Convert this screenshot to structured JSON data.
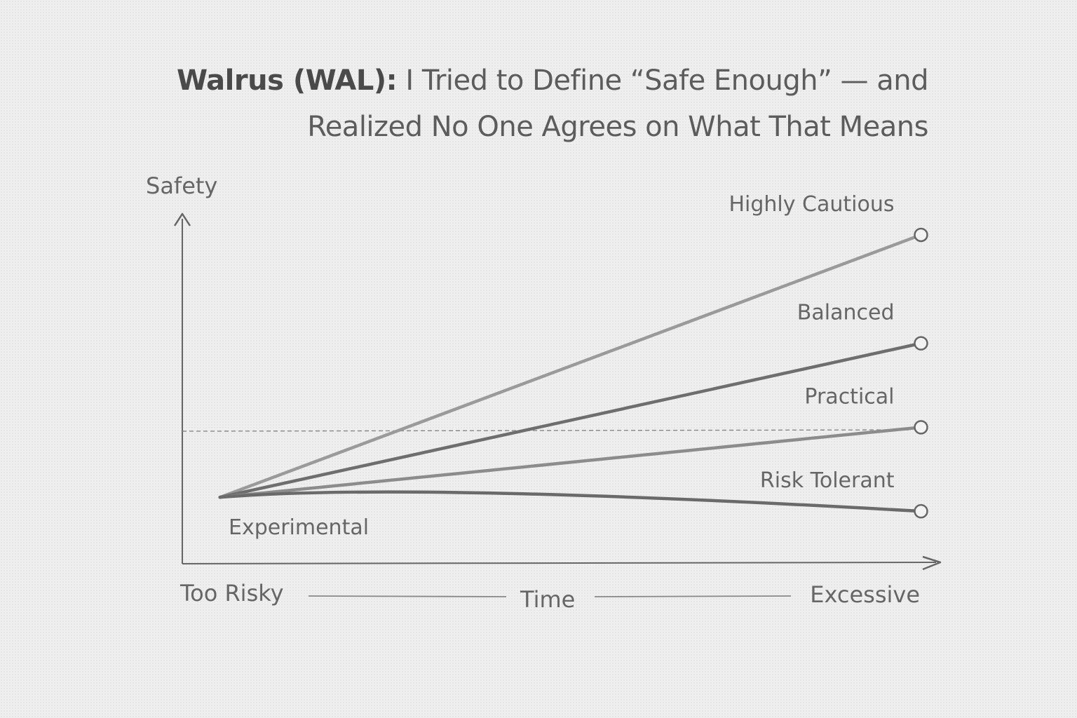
{
  "title": {
    "line1_strong": "Walrus (WAL):",
    "line1_rest": " I Tried to Define “Safe Enough” — and",
    "line2": "Realized No One Agrees on What That Means"
  },
  "chart_data": {
    "type": "line",
    "ylabel": "Safety",
    "xlabel": "Time",
    "x_start_label": "Too Risky",
    "x_end_label": "Excessive",
    "grid": false,
    "reference_line": {
      "style": "dashed",
      "y": 0.42
    },
    "origin_label": "Experimental",
    "xlim": [
      0,
      1
    ],
    "ylim": [
      0,
      1
    ],
    "series": [
      {
        "name": "Highly Cautious",
        "color": "#9a9a9a",
        "x": [
          0.05,
          0.98
        ],
        "y": [
          0.19,
          0.94
        ]
      },
      {
        "name": "Balanced",
        "color": "#6e6e6e",
        "x": [
          0.05,
          0.98
        ],
        "y": [
          0.19,
          0.63
        ]
      },
      {
        "name": "Practical",
        "color": "#8c8c8c",
        "x": [
          0.05,
          0.98
        ],
        "y": [
          0.19,
          0.39
        ]
      },
      {
        "name": "Risk Tolerant",
        "color": "#6a6a6a",
        "x": [
          0.05,
          0.3,
          0.98
        ],
        "y": [
          0.19,
          0.21,
          0.15
        ]
      }
    ]
  },
  "colors": {
    "background": "#efefef",
    "axis": "#666666",
    "text": "#555555"
  }
}
